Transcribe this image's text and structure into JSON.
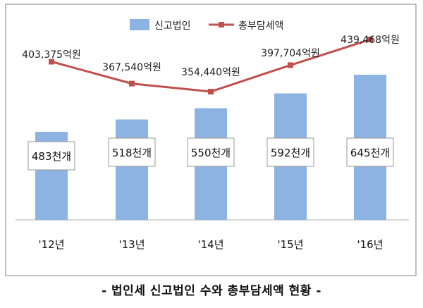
{
  "caption": "- 법인세 신고법인 수와 총부담세액 현황 -",
  "chart_data": {
    "type": "bar",
    "categories": [
      "'12년",
      "'13년",
      "'14년",
      "'15년",
      "'16년"
    ],
    "series": [
      {
        "name": "신고법인",
        "kind": "bar",
        "values": [
          483,
          518,
          550,
          592,
          645
        ],
        "labels": [
          "483천개",
          "518천개",
          "550천개",
          "592천개",
          "645천개"
        ],
        "color": "#8db3e2"
      },
      {
        "name": "총부담세액",
        "kind": "line",
        "values": [
          403375,
          367540,
          354440,
          397704,
          439468
        ],
        "labels": [
          "403,375억원",
          "367,540억원",
          "354,440억원",
          "397,704억원",
          "439,468억원"
        ],
        "color": "#c0504d"
      }
    ],
    "legend": "top-center",
    "grid": false
  }
}
